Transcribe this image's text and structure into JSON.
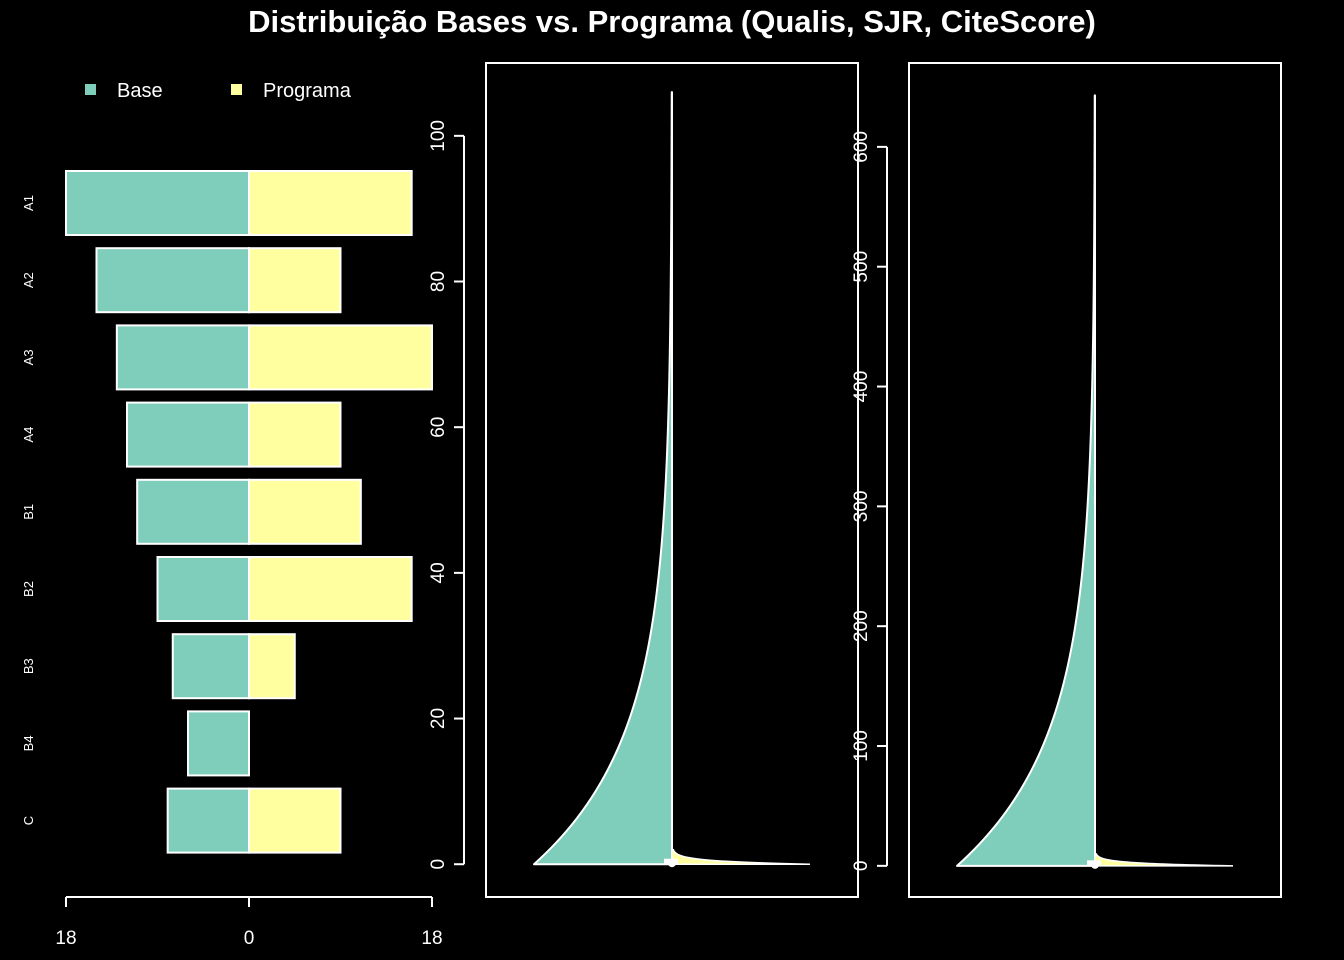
{
  "title": "Distribuição Bases vs. Programa (Qualis, SJR, CiteScore)",
  "colors": {
    "base": "#7fcdbb",
    "programa": "#ffffa0",
    "background": "#000000",
    "foreground": "#ffffff"
  },
  "chart_data": [
    {
      "type": "bar",
      "subtype": "back-to-back horizontal",
      "legend": {
        "placement": "top-left",
        "entries": [
          "Base",
          "Programa"
        ]
      },
      "categories": [
        "A1",
        "A2",
        "A3",
        "A4",
        "B1",
        "B2",
        "B3",
        "B4",
        "C"
      ],
      "series": [
        {
          "name": "Base",
          "values": [
            18,
            15,
            13,
            12,
            11,
            9,
            7.5,
            6,
            8
          ]
        },
        {
          "name": "Programa",
          "values": [
            16,
            9,
            18,
            9,
            11,
            16,
            4.5,
            0,
            9
          ]
        }
      ],
      "xlim": [
        -18,
        18
      ],
      "xticks": [
        -18,
        0,
        18
      ],
      "xtick_labels": [
        "18",
        "0",
        "18"
      ]
    },
    {
      "type": "area",
      "subtype": "split violin",
      "series": [
        {
          "name": "Base",
          "max": 106
        },
        {
          "name": "Programa",
          "max": 2
        }
      ],
      "ylim": [
        -4.5,
        110
      ],
      "yticks": [
        0,
        20,
        40,
        60,
        80,
        100
      ]
    },
    {
      "type": "area",
      "subtype": "split violin",
      "series": [
        {
          "name": "Base",
          "max": 643
        },
        {
          "name": "Programa",
          "max": 10
        }
      ],
      "ylim": [
        -26,
        670
      ],
      "yticks": [
        0,
        100,
        200,
        300,
        400,
        500,
        600
      ]
    }
  ]
}
